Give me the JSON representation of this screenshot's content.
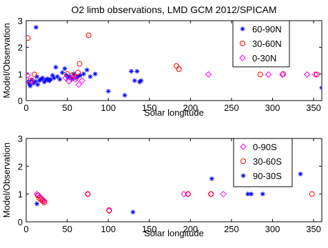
{
  "chart_data": [
    {
      "type": "scatter",
      "title": "O2 limb observations, LMD GCM 2012/SPICAM",
      "xlabel": "Solar longitude",
      "ylabel": "Model/Observation",
      "xlim": [
        0,
        360
      ],
      "ylim": [
        0,
        3
      ],
      "xticks": [
        "0",
        "50",
        "100",
        "150",
        "200",
        "250",
        "300",
        "350"
      ],
      "yticks": [
        "0",
        "1",
        "2",
        "3"
      ],
      "grid": false,
      "legend_position": "top-right",
      "series": [
        {
          "name": "60-90N",
          "marker": "star",
          "color": "#0000ff",
          "points": [
            [
              3,
              0.7
            ],
            [
              4,
              0.62
            ],
            [
              5,
              0.55
            ],
            [
              7,
              0.78
            ],
            [
              9,
              0.65
            ],
            [
              11,
              0.72
            ],
            [
              12,
              2.75
            ],
            [
              13,
              0.9
            ],
            [
              14,
              0.6
            ],
            [
              16,
              0.75
            ],
            [
              18,
              0.8
            ],
            [
              20,
              0.85
            ],
            [
              22,
              0.7
            ],
            [
              24,
              0.77
            ],
            [
              26,
              0.82
            ],
            [
              28,
              0.74
            ],
            [
              30,
              0.8
            ],
            [
              32,
              0.95
            ],
            [
              34,
              0.85
            ],
            [
              36,
              1.25
            ],
            [
              38,
              0.9
            ],
            [
              41,
              0.8
            ],
            [
              44,
              1.05
            ],
            [
              47,
              1.2
            ],
            [
              49,
              0.95
            ],
            [
              51,
              0.85
            ],
            [
              53,
              0.9
            ],
            [
              56,
              0.8
            ],
            [
              58,
              1.0
            ],
            [
              61,
              0.85
            ],
            [
              63,
              0.9
            ],
            [
              66,
              0.95
            ],
            [
              70,
              1.0
            ],
            [
              74,
              1.15
            ],
            [
              78,
              0.9
            ],
            [
              84,
              1.0
            ],
            [
              100,
              0.35
            ],
            [
              120,
              0.2
            ],
            [
              128,
              1.1
            ],
            [
              132,
              0.75
            ],
            [
              135,
              1.1
            ],
            [
              138,
              0.7
            ],
            [
              140,
              0.75
            ],
            [
              360,
              0.48
            ]
          ]
        },
        {
          "name": "30-60N",
          "marker": "circle",
          "color": "#ff0000",
          "points": [
            [
              2,
              2.35
            ],
            [
              5,
              0.75
            ],
            [
              10,
              0.98
            ],
            [
              50,
              1.0
            ],
            [
              56,
              0.95
            ],
            [
              60,
              0.9
            ],
            [
              63,
              1.05
            ],
            [
              65,
              1.38
            ],
            [
              76,
              2.45
            ],
            [
              183,
              1.3
            ],
            [
              186,
              1.18
            ],
            [
              285,
              0.98
            ],
            [
              313,
              1.0
            ],
            [
              354,
              0.98
            ]
          ]
        },
        {
          "name": "0-30N",
          "marker": "diamond",
          "color": "#ff00ff",
          "points": [
            [
              2,
              0.95
            ],
            [
              6,
              0.72
            ],
            [
              48,
              0.85
            ],
            [
              52,
              0.72
            ],
            [
              56,
              0.85
            ],
            [
              60,
              0.8
            ],
            [
              64,
              0.6
            ],
            [
              68,
              0.75
            ],
            [
              222,
              0.98
            ],
            [
              295,
              0.98
            ],
            [
              312,
              0.98
            ],
            [
              342,
              0.98
            ],
            [
              352,
              0.98
            ]
          ]
        }
      ]
    },
    {
      "type": "scatter",
      "title": "",
      "xlabel": "Solar longitude",
      "ylabel": "Model/Observation",
      "xlim": [
        0,
        360
      ],
      "ylim": [
        0,
        3
      ],
      "xticks": [
        "0",
        "50",
        "100",
        "150",
        "200",
        "250",
        "300",
        "350"
      ],
      "yticks": [
        "0",
        "1",
        "2",
        "3"
      ],
      "grid": false,
      "legend_position": "top-right",
      "series": [
        {
          "name": "0-90S",
          "marker": "diamond",
          "color": "#ff00ff",
          "points": [
            [
              13,
              1.0
            ],
            [
              15,
              0.95
            ],
            [
              17,
              0.9
            ],
            [
              20,
              0.8
            ],
            [
              22,
              0.75
            ],
            [
              75,
              1.0
            ],
            [
              101,
              0.4
            ],
            [
              192,
              1.0
            ],
            [
              197,
              1.0
            ],
            [
              225,
              1.0
            ],
            [
              240,
              1.0
            ]
          ]
        },
        {
          "name": "30-60S",
          "marker": "circle",
          "color": "#ff0000",
          "points": [
            [
              14,
              0.95
            ],
            [
              16,
              0.85
            ],
            [
              18,
              0.8
            ],
            [
              20,
              0.75
            ],
            [
              22,
              0.7
            ],
            [
              75,
              1.0
            ],
            [
              101,
              0.42
            ],
            [
              197,
              1.0
            ],
            [
              225,
              1.0
            ],
            [
              348,
              1.0
            ]
          ]
        },
        {
          "name": "90-30S",
          "marker": "star",
          "color": "#0000ff",
          "points": [
            [
              13,
              0.65
            ],
            [
              130,
              0.35
            ],
            [
              226,
              1.55
            ],
            [
              270,
              1.0
            ],
            [
              274,
              1.0
            ],
            [
              288,
              1.0
            ],
            [
              334,
              1.72
            ]
          ]
        }
      ]
    }
  ]
}
